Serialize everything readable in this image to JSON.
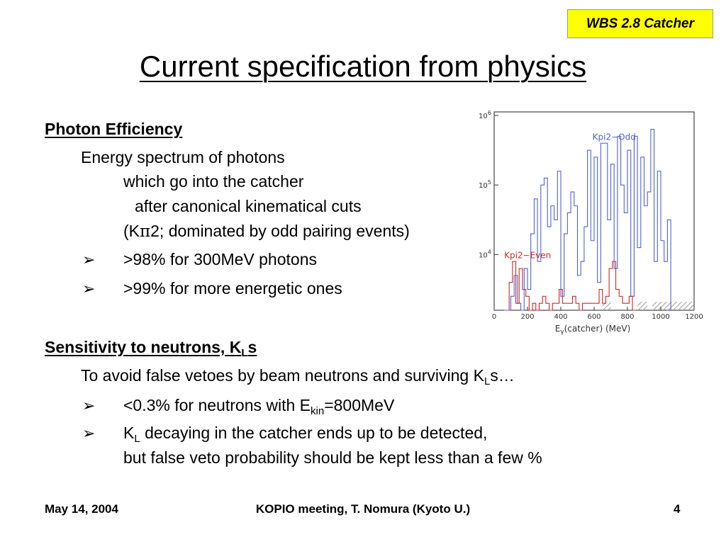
{
  "header": {
    "tag": "WBS 2.8 Catcher"
  },
  "title": "Current specification from physics",
  "photon": {
    "heading": "Photon Efficiency",
    "line1": "Energy spectrum of photons",
    "line2": "which go into the catcher",
    "line3": "after canonical kinematical cuts",
    "line4_pre": "(K",
    "line4_pi": "π",
    "line4_post": "2; dominated by odd pairing events)",
    "bullets": [
      ">98% for 300MeV photons",
      ">99% for more energetic ones"
    ]
  },
  "sensitivity": {
    "heading_pre": "Sensitivity to neutrons, K",
    "heading_sub": "L",
    "heading_post": "s",
    "intro_pre": "To avoid false vetoes by beam neutrons and surviving K",
    "intro_sub": "L",
    "intro_post": "s…",
    "bullet1_pre": "<0.3% for neutrons with E",
    "bullet1_sub": "kin",
    "bullet1_post": "=800MeV",
    "bullet2_pre": "K",
    "bullet2_sub": "L",
    "bullet2_post": " decaying in the catcher ends up to be detected,",
    "bullet2_line2": "but false veto probability should be kept less than a few %"
  },
  "bullet_glyph": "➢",
  "footer": {
    "date": "May 14, 2004",
    "center": "KOPIO meeting, T. Nomura (Kyoto U.)",
    "page": "4"
  },
  "chart_data": {
    "type": "histogram",
    "xlabel_prefix": "E",
    "xlabel_sub": "γ",
    "xlabel_suffix": "(catcher)   (MeV)",
    "x_ticks": [
      "0",
      "200",
      "400",
      "600",
      "800",
      "1000",
      "1200"
    ],
    "xlim": [
      0,
      1200
    ],
    "y_scale": "log",
    "ylim_exp": [
      3.2,
      6.05
    ],
    "y_ticks": [
      {
        "base": "10",
        "exp": "4",
        "value_exp": 4
      },
      {
        "base": "10",
        "exp": "5",
        "value_exp": 5
      },
      {
        "base": "10",
        "exp": "6",
        "value_exp": 6
      }
    ],
    "bin_width_mev": 20,
    "series": [
      {
        "name": "Kpi2−Odd",
        "color": "#4f63d6",
        "x_start": 60,
        "log_values": [
          3.2,
          3.2,
          3.4,
          3.7,
          3.3,
          3.2,
          3.8,
          3.5,
          4.3,
          4.8,
          3.9,
          5.0,
          5.1,
          4.4,
          4.7,
          4.5,
          5.2,
          3.4,
          4.3,
          4.6,
          4.9,
          4.7,
          3.7,
          3.9,
          4.4,
          5.5,
          4.2,
          5.4,
          3.6,
          5.6,
          5.6,
          4.5,
          5.3,
          3.8,
          5.7,
          5.0,
          4.6,
          5.5,
          3.4,
          5.7,
          4.1,
          5.4,
          4.7,
          4.9,
          5.8,
          3.9,
          5.2,
          4.2,
          3.9,
          4.5
        ]
      },
      {
        "name": "Kpi2−Even",
        "color": "#cc2a2a",
        "x_start": 90,
        "log_values": [
          3.6,
          3.9,
          3.3,
          3.8,
          3.5,
          3.4,
          3.2,
          3.3,
          3.2,
          3.3,
          3.4,
          3.3,
          3.2,
          3.3,
          3.3,
          3.5,
          3.3,
          3.3,
          3.3,
          3.4,
          3.3,
          3.2,
          3.3,
          3.3,
          3.3,
          3.3,
          3.3,
          3.5,
          3.3,
          3.4,
          3.8,
          3.9,
          3.5,
          3.4,
          3.3,
          3.3,
          3.4,
          3.2
        ]
      }
    ],
    "hatch_regions": [
      {
        "from": 650,
        "to": 700
      },
      {
        "from": 860,
        "to": 920
      },
      {
        "from": 950,
        "to": 1200
      }
    ]
  }
}
